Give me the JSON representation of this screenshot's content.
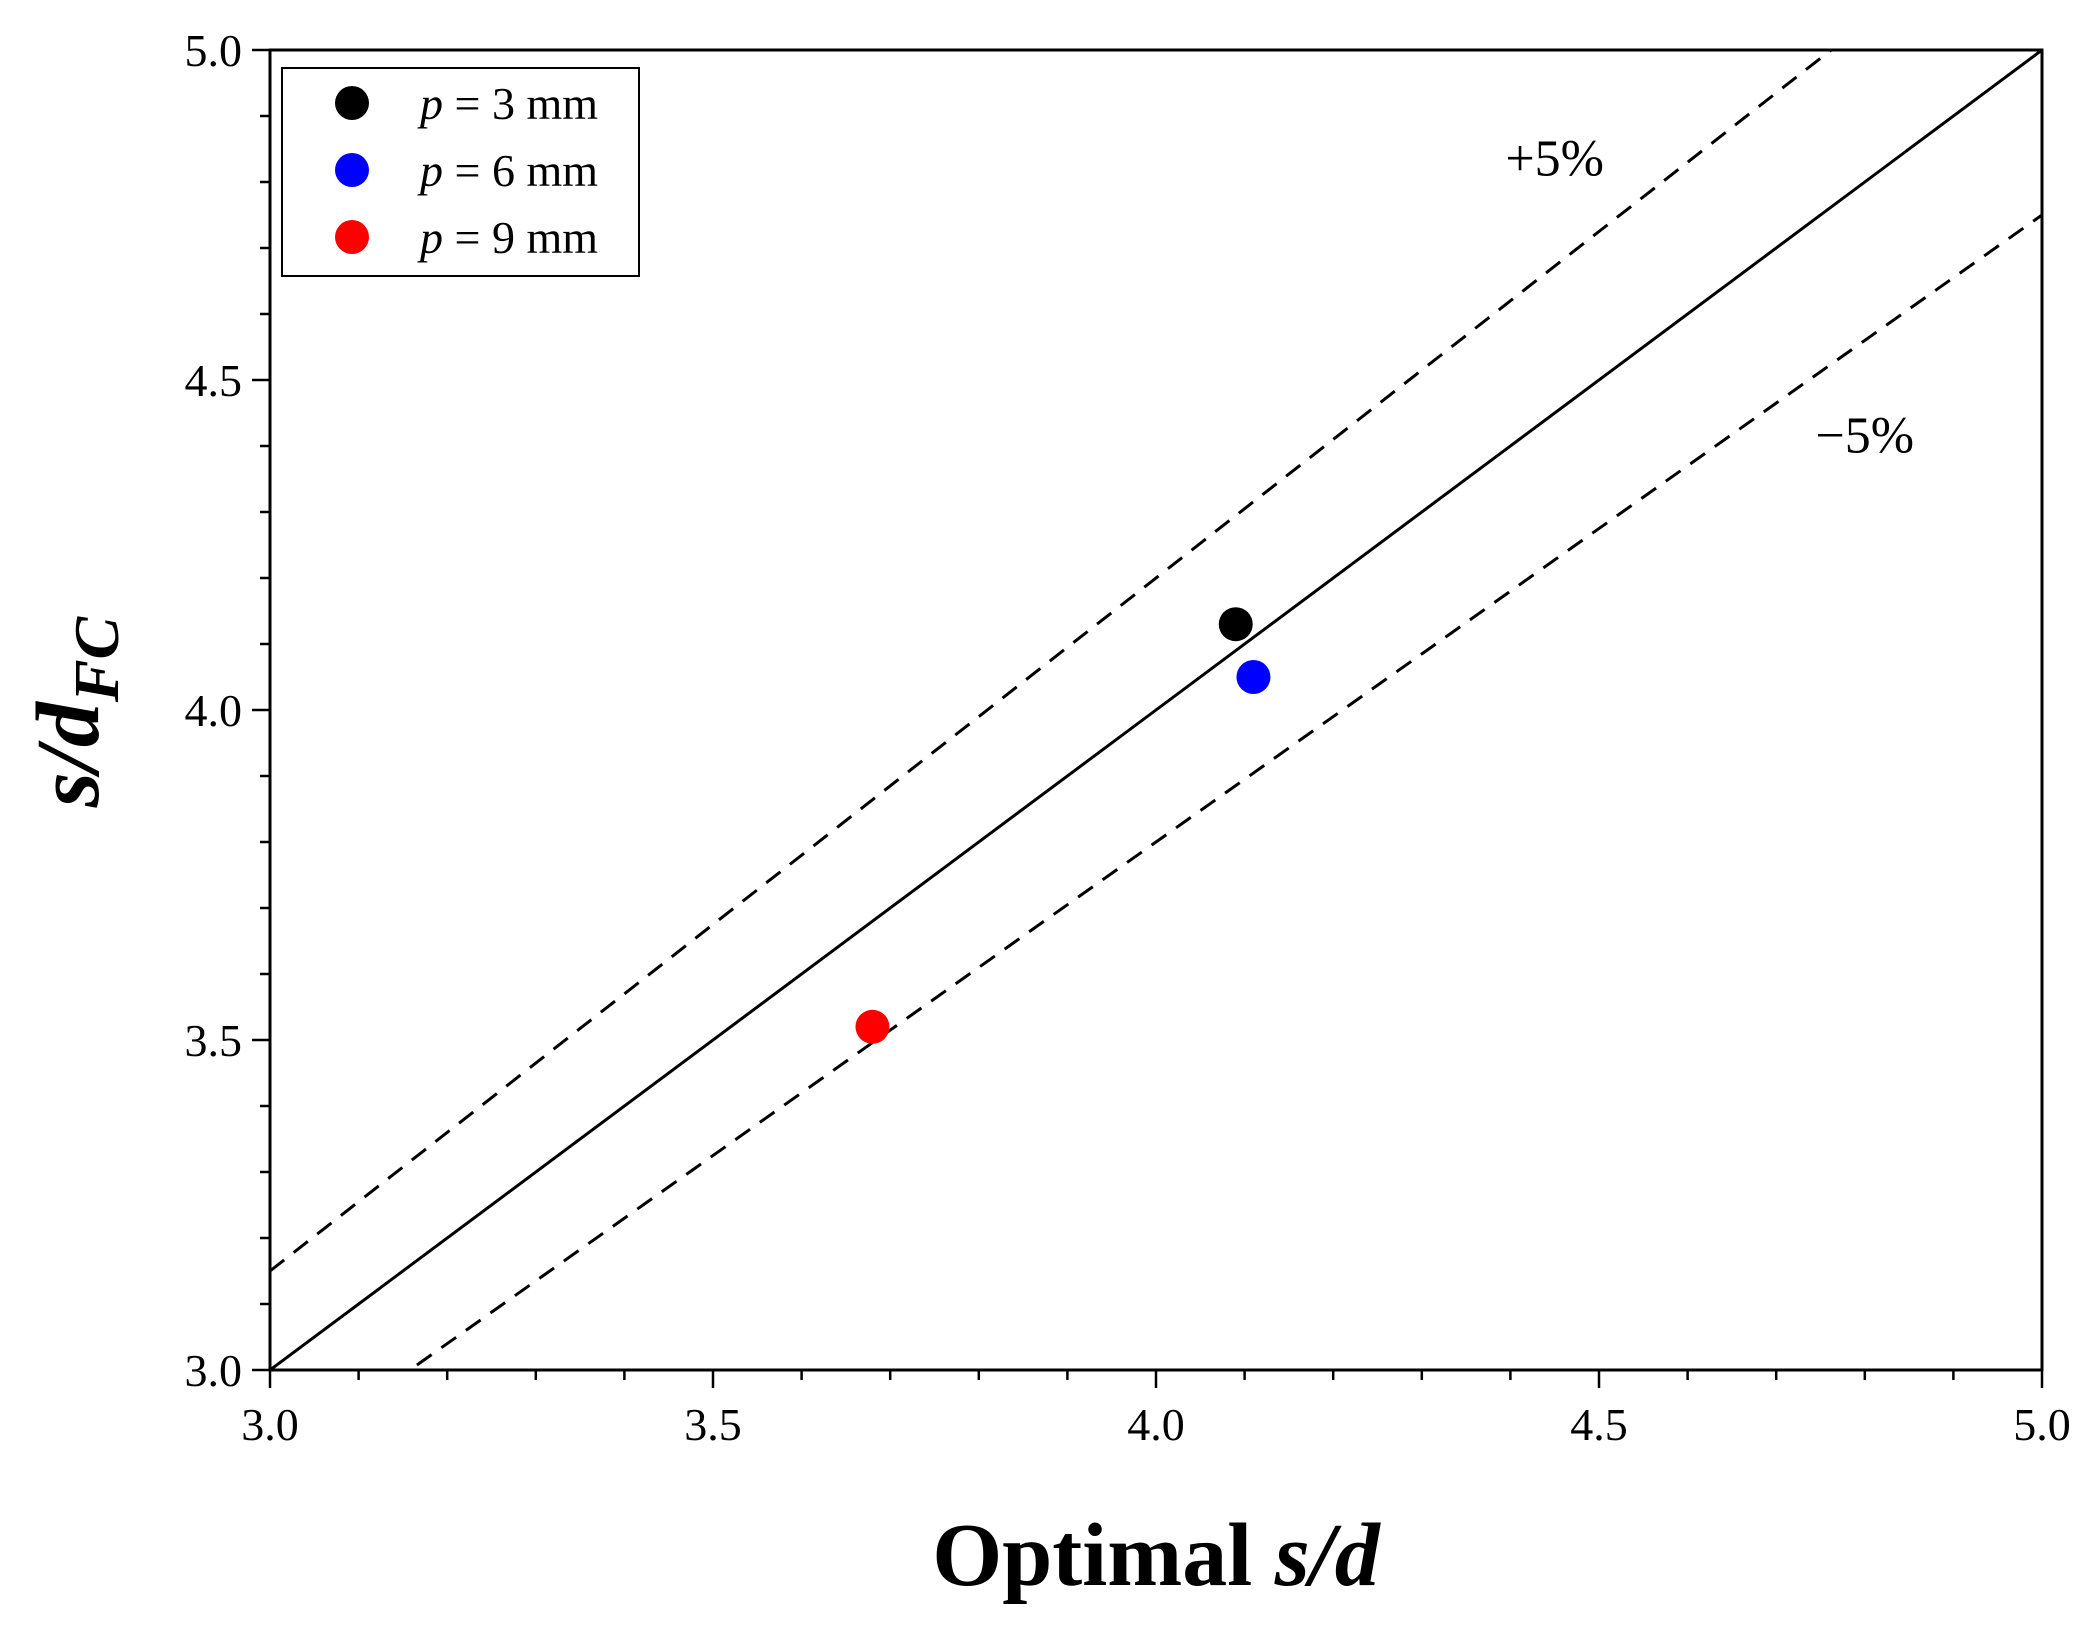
{
  "chart_data": {
    "type": "scatter",
    "title": "",
    "xlabel": {
      "prefix": "Optimal ",
      "var": "s/d"
    },
    "ylabel": {
      "main": "s/d",
      "sub": "FC"
    },
    "xlim": [
      3.0,
      5.0
    ],
    "ylim": [
      3.0,
      5.0
    ],
    "x_ticks": [
      "3.0",
      "3.5",
      "4.0",
      "4.5",
      "5.0"
    ],
    "y_ticks": [
      "3.0",
      "3.5",
      "4.0",
      "4.5",
      "5.0"
    ],
    "x_tick_values": [
      3.0,
      3.5,
      4.0,
      4.5,
      5.0
    ],
    "y_tick_values": [
      3.0,
      3.5,
      4.0,
      4.5,
      5.0
    ],
    "x_minor_step": 0.1,
    "y_minor_step": 0.1,
    "grid": false,
    "legend_position": "top-left",
    "series": [
      {
        "name": "p = 3 mm",
        "var": "p",
        "rest": " = 3 mm",
        "color": "#000000",
        "points": [
          {
            "x": 4.09,
            "y": 4.13
          }
        ]
      },
      {
        "name": "p = 6 mm",
        "var": "p",
        "rest": " = 6 mm",
        "color": "#0000ff",
        "points": [
          {
            "x": 4.11,
            "y": 4.05
          }
        ]
      },
      {
        "name": "p = 9 mm",
        "var": "p",
        "rest": " = 9 mm",
        "color": "#ff0000",
        "points": [
          {
            "x": 3.68,
            "y": 3.52
          }
        ]
      }
    ],
    "reference_lines": [
      {
        "name": "identity",
        "slope": 1.0,
        "style": "solid"
      },
      {
        "name": "plus-5-percent",
        "slope": 1.05,
        "style": "dashed",
        "label": "+5%",
        "label_at": {
          "x": 4.45,
          "y": 4.81
        }
      },
      {
        "name": "minus-5-percent",
        "slope": 0.95,
        "style": "dashed",
        "label": "−5%",
        "label_at": {
          "x": 4.8,
          "y": 4.39
        }
      }
    ]
  }
}
